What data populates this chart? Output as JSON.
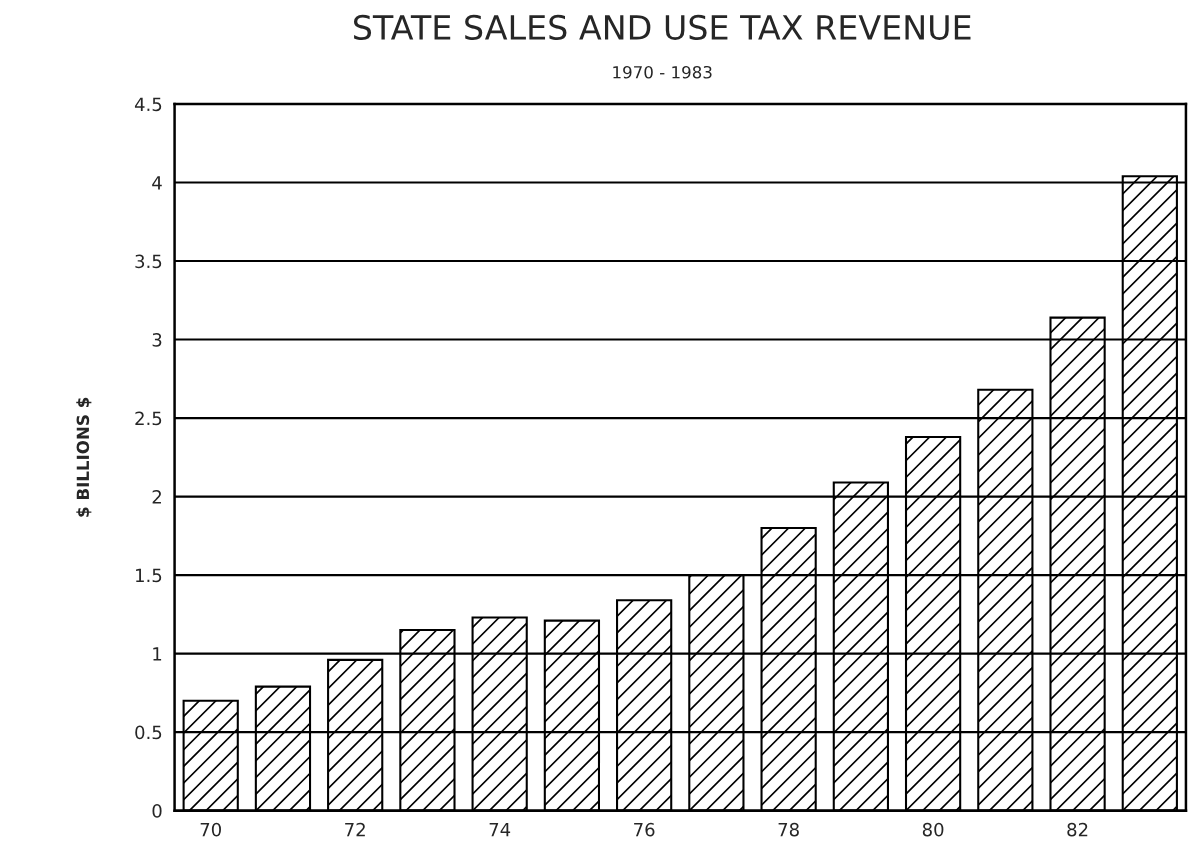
{
  "chart_data": {
    "type": "bar",
    "title": "STATE SALES AND USE TAX REVENUE",
    "subtitle": "1970 - 1983",
    "ylabel": "$ BILLIONS $",
    "categories": [
      "70",
      null,
      "72",
      null,
      "74",
      null,
      "76",
      null,
      "78",
      null,
      "80",
      null,
      "82",
      null
    ],
    "values": [
      0.7,
      0.79,
      0.96,
      1.15,
      1.23,
      1.21,
      1.34,
      1.5,
      1.8,
      2.09,
      2.38,
      2.68,
      3.14,
      4.04
    ],
    "color": "#000000",
    "ylim": [
      0,
      4.5
    ],
    "yticks": [
      0,
      0.5,
      1,
      1.5,
      2,
      2.5,
      3,
      3.5,
      4,
      4.5
    ],
    "grid": "y"
  }
}
